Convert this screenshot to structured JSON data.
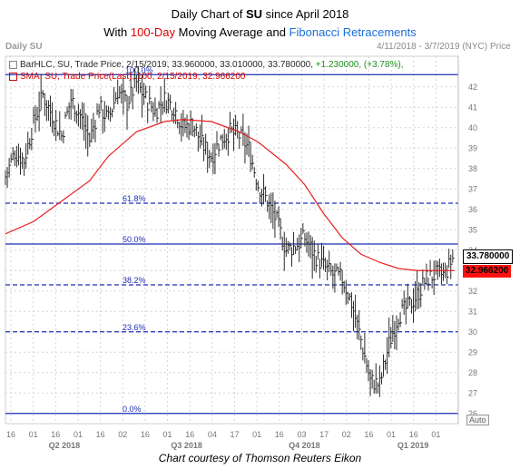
{
  "title": {
    "line1_prefix": "Daily Chart of ",
    "line1_ticker": "SU",
    "line1_suffix": " since April 2018",
    "line2_prefix": "With ",
    "line2_red": "100-Day",
    "line2_mid": " Moving Average and ",
    "line2_blue": "Fibonacci Retracements"
  },
  "header": {
    "left_label": "Daily SU",
    "date_range": "4/11/2018 - 3/7/2019 (NYC)",
    "exchange": "Price"
  },
  "legend": {
    "bar_line": "BarHLC, SU, Trade Price, 2/15/2019, 33.960000, 33.010000, 33.780000,",
    "bar_change": "+1.230000, (+3.78%),",
    "sma_line": "SMA, SU, Trade Price(Last), 100, 2/15/2019, 32.966200"
  },
  "tags": {
    "price": "33.780000",
    "sma": "32.966200",
    "auto": "Auto"
  },
  "credit": "Chart courtesy of Thomson Reuters Eikon",
  "colors": {
    "price_bars": "#2b2b2b",
    "sma_line": "#e82020",
    "fib_lines": "#1c2fb8",
    "grid": "#d4d4d4"
  },
  "chart_data": {
    "type": "line",
    "title": "Daily Chart of SU since April 2018",
    "subtitle": "With 100-Day Moving Average and Fibonacci Retracements",
    "ylim": [
      25.5,
      43.5
    ],
    "y_ticks": [
      26,
      27,
      28,
      29,
      30,
      31,
      32,
      33,
      34,
      35,
      36,
      37,
      38,
      39,
      40,
      41,
      42
    ],
    "x_tick_labels": [
      "16",
      "01",
      "16",
      "01",
      "16",
      "02",
      "16",
      "01",
      "16",
      "04",
      "17",
      "01",
      "16",
      "03",
      "17",
      "02",
      "16",
      "01",
      "16",
      "01"
    ],
    "x_period_labels": [
      "Q2 2018",
      "Q3 2018",
      "Q4 2018",
      "Q1 2019"
    ],
    "fibonacci": [
      {
        "label": "100.0%",
        "value": 42.6
      },
      {
        "label": "61.8%",
        "value": 36.3
      },
      {
        "label": "50.0%",
        "value": 34.3
      },
      {
        "label": "38.2%",
        "value": 32.3
      },
      {
        "label": "23.6%",
        "value": 30.0
      },
      {
        "label": "0.0%",
        "value": 26.0
      }
    ],
    "series": [
      {
        "name": "BarHLC, SU, Trade Price",
        "kind": "price",
        "x": [
          0,
          5,
          10,
          15,
          20,
          25,
          30,
          35,
          40,
          45,
          50,
          55,
          60,
          65,
          70,
          75,
          80,
          85,
          90,
          95,
          100,
          105,
          110,
          115,
          120,
          125,
          130,
          135,
          140,
          145,
          150,
          155,
          160,
          165,
          170,
          175,
          180,
          185,
          190,
          195,
          200,
          205,
          210,
          215,
          220,
          225,
          230,
          235,
          240
        ],
        "values": [
          37.6,
          38.8,
          38.4,
          40.2,
          41.6,
          40.6,
          39.6,
          41.4,
          40.6,
          39.4,
          41.0,
          40.4,
          41.8,
          41.2,
          42.2,
          41.4,
          40.8,
          41.4,
          41.0,
          40.0,
          40.2,
          39.2,
          38.6,
          39.4,
          39.8,
          39.6,
          39.0,
          37.2,
          36.4,
          35.4,
          34.0,
          34.2,
          34.6,
          33.8,
          33.2,
          32.8,
          32.6,
          31.4,
          29.6,
          27.6,
          27.4,
          29.4,
          30.8,
          31.2,
          31.8,
          32.6,
          32.8,
          32.8,
          33.8
        ]
      },
      {
        "name": "SMA, SU, Trade Price(Last), 100",
        "kind": "sma",
        "x": [
          0,
          15,
          30,
          45,
          55,
          70,
          85,
          95,
          110,
          125,
          135,
          150,
          160,
          170,
          180,
          190,
          200,
          210,
          220,
          230,
          240
        ],
        "values": [
          34.8,
          35.4,
          36.4,
          37.4,
          38.6,
          39.8,
          40.3,
          40.4,
          40.3,
          39.8,
          39.3,
          38.2,
          37.2,
          35.8,
          34.6,
          33.8,
          33.4,
          33.1,
          33.0,
          33.0,
          33.0
        ]
      }
    ],
    "last_price": 33.78,
    "last_sma": 32.9662
  }
}
